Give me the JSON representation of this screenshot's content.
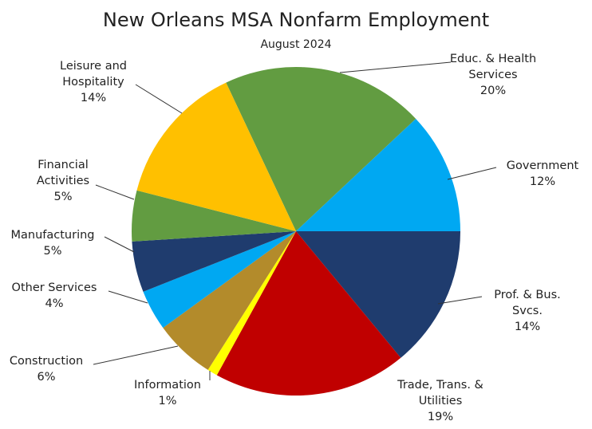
{
  "chart_data": {
    "type": "pie",
    "title": "New Orleans MSA Nonfarm Employment",
    "subtitle": "August 2024",
    "slices": [
      {
        "name": "Educ. & Health Services",
        "lines": [
          "Educ. & Health",
          "Services"
        ],
        "value": 20,
        "pct_label": "20%",
        "color": "#629c41"
      },
      {
        "name": "Government",
        "lines": [
          "Government"
        ],
        "value": 12,
        "pct_label": "12%",
        "color": "#00a8f2"
      },
      {
        "name": "Prof. & Bus. Svcs.",
        "lines": [
          "Prof. & Bus.",
          "Svcs."
        ],
        "value": 14,
        "pct_label": "14%",
        "color": "#1f3c6e"
      },
      {
        "name": "Trade, Trans. & Utilities",
        "lines": [
          "Trade, Trans. &",
          "Utilities"
        ],
        "value": 19,
        "pct_label": "19%",
        "color": "#c00000"
      },
      {
        "name": "Information",
        "lines": [
          "Information"
        ],
        "value": 1,
        "pct_label": "1%",
        "color": "#ffff00"
      },
      {
        "name": "Construction",
        "lines": [
          "Construction"
        ],
        "value": 6,
        "pct_label": "6%",
        "color": "#b38b2b"
      },
      {
        "name": "Other Services",
        "lines": [
          "Other Services"
        ],
        "value": 4,
        "pct_label": "4%",
        "color": "#00a8f2"
      },
      {
        "name": "Manufacturing",
        "lines": [
          "Manufacturing"
        ],
        "value": 5,
        "pct_label": "5%",
        "color": "#1f3c6e"
      },
      {
        "name": "Financial Activities",
        "lines": [
          "Financial",
          "Activities"
        ],
        "value": 5,
        "pct_label": "5%",
        "color": "#629c41"
      },
      {
        "name": "Leisure and Hospitality",
        "lines": [
          "Leisure and",
          "Hospitality"
        ],
        "value": 14,
        "pct_label": "14%",
        "color": "#ffc000"
      }
    ]
  }
}
